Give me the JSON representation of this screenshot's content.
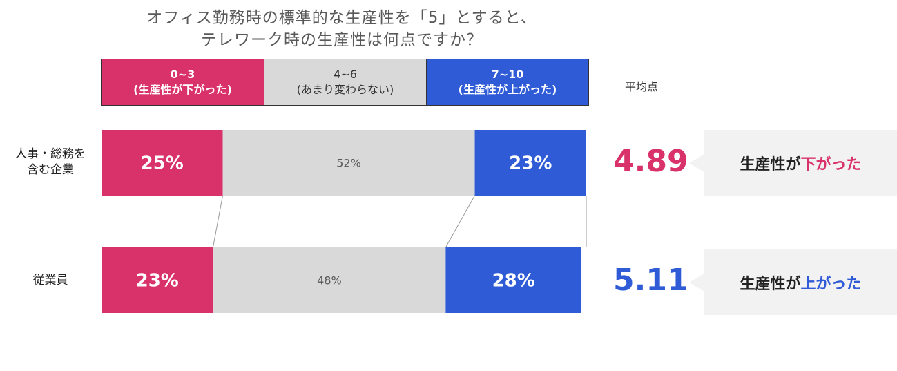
{
  "title": {
    "line1": "オフィス勤務時の標準的な生産性を「5」とすると、",
    "line2": "テレワーク時の生産性は何点ですか？"
  },
  "legend": [
    {
      "range": "0~3",
      "desc": "(生産性が下がった)",
      "color": "#d9326b"
    },
    {
      "range": "4~6",
      "desc": "(あまり変わらない)",
      "color": "#d9d9d9"
    },
    {
      "range": "7~10",
      "desc": "(生産性が上がった)",
      "color": "#2f5bd7"
    }
  ],
  "avg_header": "平均点",
  "rows": [
    {
      "label_line1": "人事・総務を",
      "label_line2": "含む企業",
      "average": "4.89",
      "average_color": "#d9326b",
      "callout_prefix": "生産性が",
      "callout_highlight": "下がった",
      "callout_highlight_color": "#d9326b"
    },
    {
      "label_line1": "従業員",
      "label_line2": "",
      "average": "5.11",
      "average_color": "#2f5bd7",
      "callout_prefix": "生産性が",
      "callout_highlight": "上がった",
      "callout_highlight_color": "#2f5bd7"
    }
  ],
  "chart_data": {
    "type": "bar",
    "stacked": true,
    "orientation": "horizontal",
    "unit": "%",
    "categories": [
      "人事・総務を含む企業",
      "従業員"
    ],
    "series": [
      {
        "name": "0~3 (生産性が下がった)",
        "values": [
          25,
          23
        ],
        "labels": [
          "25%",
          "23%"
        ],
        "color": "#d9326b",
        "label_color": "#ffffff",
        "bold": true
      },
      {
        "name": "4~6 (あまり変わらない)",
        "values": [
          52,
          48
        ],
        "labels": [
          "52%",
          "48%"
        ],
        "color": "#d9d9d9",
        "label_color": "#595959",
        "bold": false
      },
      {
        "name": "7~10 (生産性が上がった)",
        "values": [
          23,
          28
        ],
        "labels": [
          "23%",
          "28%"
        ],
        "color": "#2f5bd7",
        "label_color": "#ffffff",
        "bold": true
      }
    ],
    "xlim": [
      0,
      100
    ]
  }
}
